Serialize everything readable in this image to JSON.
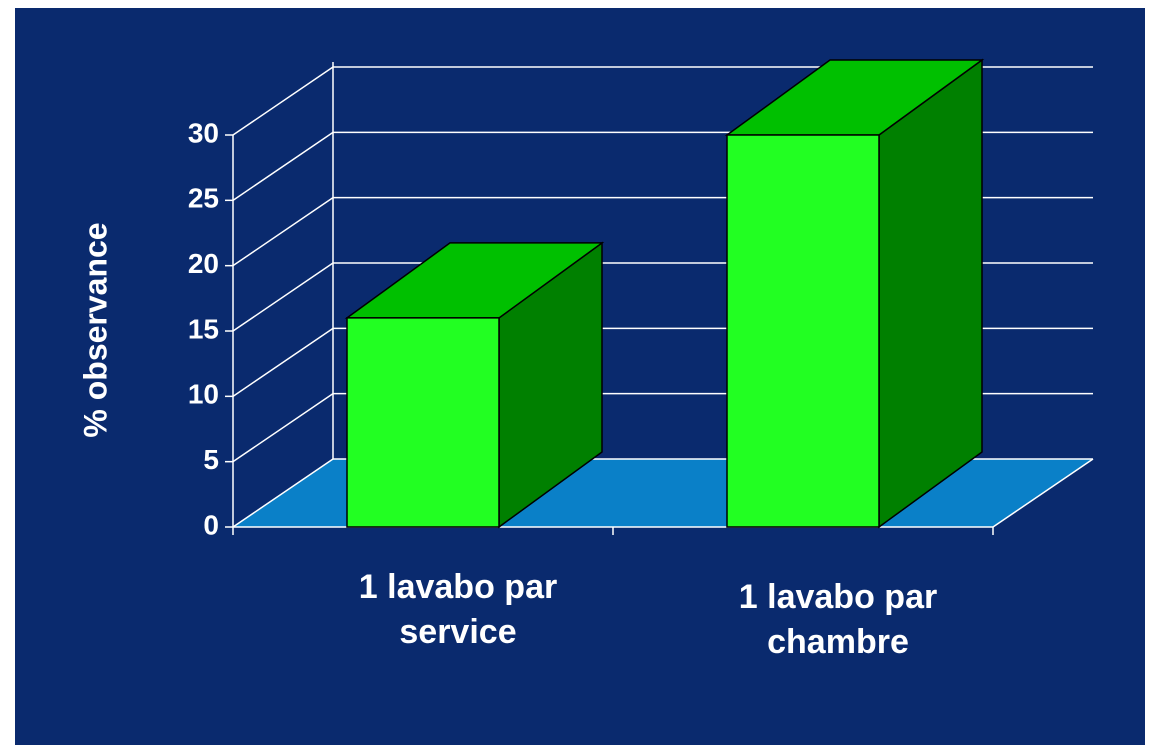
{
  "chart_data": {
    "type": "bar3d",
    "y_label": "% observance",
    "categories": [
      "1 lavabo par service",
      "1 lavabo par chambre"
    ],
    "values": [
      16,
      30
    ],
    "color": "#22ff22",
    "ylim": [
      0,
      30
    ],
    "yticks": [
      0,
      5,
      10,
      15,
      20,
      25,
      30
    ],
    "grid": true
  }
}
